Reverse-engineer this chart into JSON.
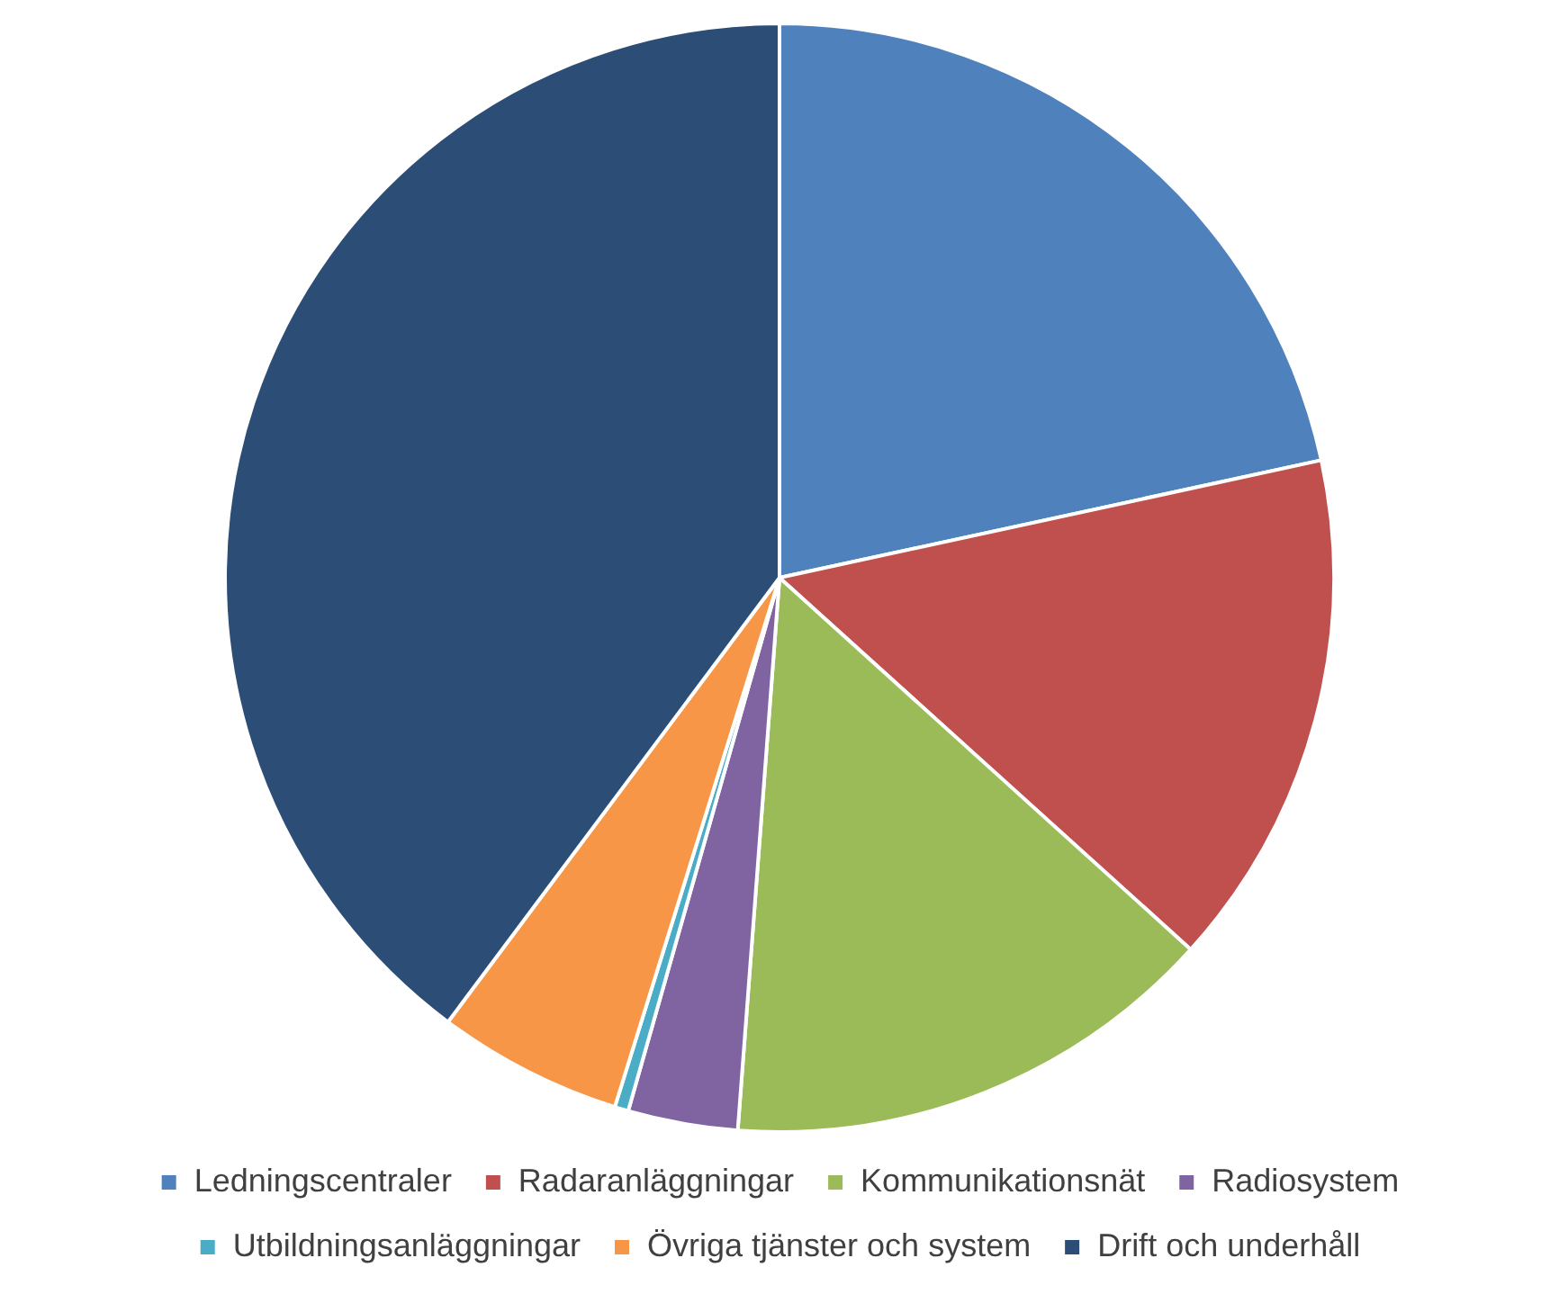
{
  "chart_data": {
    "type": "pie",
    "categories": [
      "Ledningscentraler",
      "Radaranläggningar",
      "Kommunikationsnät",
      "Radiosystem",
      "Utbildningsanläggningar",
      "Övriga tjänster och system",
      "Drift och underhåll"
    ],
    "values": [
      21.6,
      15.1,
      14.5,
      3.2,
      0.4,
      5.4,
      39.8
    ],
    "colors": [
      "#4f81bd",
      "#c0504d",
      "#9bbb59",
      "#8064a2",
      "#4bacc6",
      "#f79646",
      "#2c4d75"
    ],
    "legend": "bottom"
  }
}
